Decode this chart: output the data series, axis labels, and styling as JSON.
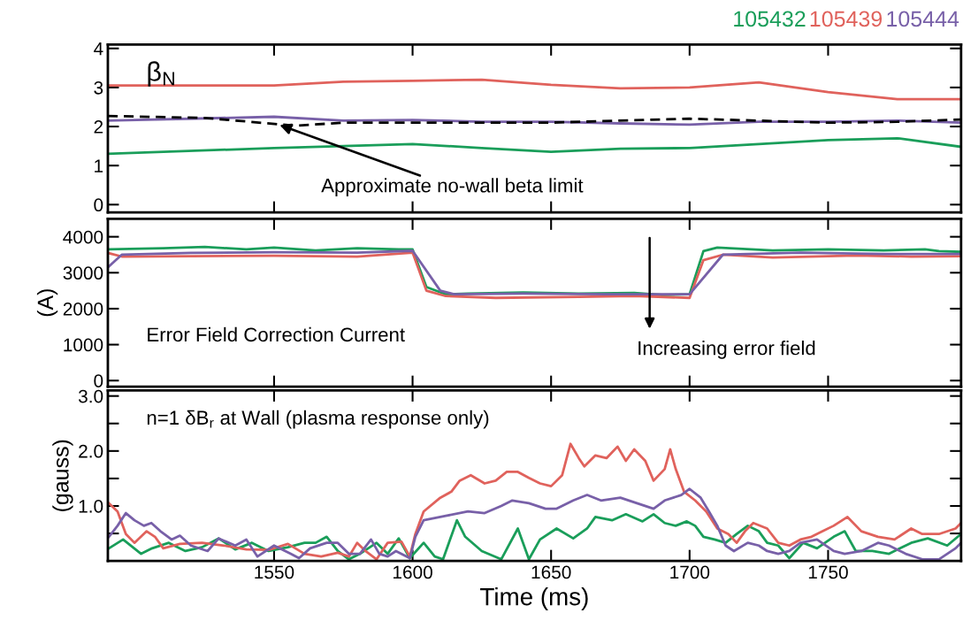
{
  "chart_data": [
    {
      "type": "line",
      "xlim": [
        1490,
        1798
      ],
      "ylim": [
        -0.2,
        4.1
      ],
      "xticks": [
        {
          "value": 1550,
          "label": null
        },
        {
          "value": 1600,
          "label": null
        },
        {
          "value": 1650,
          "label": null
        },
        {
          "value": 1700,
          "label": null
        },
        {
          "value": 1750,
          "label": null
        }
      ],
      "yticks": [
        0,
        1,
        2,
        3,
        4
      ],
      "tick_labels": "y",
      "legend": "top right",
      "grid": false,
      "line_style": "solid",
      "marker": "none",
      "annotations": [
        "β$_{N}$",
        {
          "text": "Approximate no-wall beta limit",
          "x": 1552,
          "y": 2.04
        }
      ],
      "series": [
        {
          "name": "105432",
          "color": "#1a9e5a",
          "x": [
            1490,
            1550,
            1575,
            1600,
            1625,
            1650,
            1675,
            1700,
            1725,
            1750,
            1775,
            1798
          ],
          "values": [
            1.3,
            1.45,
            1.5,
            1.55,
            1.45,
            1.35,
            1.43,
            1.45,
            1.55,
            1.65,
            1.7,
            1.48
          ]
        },
        {
          "name": "105439",
          "color": "#e0625c",
          "x": [
            1490,
            1550,
            1575,
            1600,
            1625,
            1650,
            1675,
            1700,
            1725,
            1750,
            1775,
            1798
          ],
          "values": [
            3.05,
            3.05,
            3.15,
            3.17,
            3.2,
            3.07,
            2.98,
            3.0,
            3.13,
            2.88,
            2.7,
            2.7
          ]
        },
        {
          "name": "105444",
          "color": "#7860a8",
          "x": [
            1490,
            1550,
            1575,
            1600,
            1625,
            1650,
            1675,
            1700,
            1725,
            1750,
            1775,
            1798
          ],
          "values": [
            2.15,
            2.25,
            2.15,
            2.17,
            2.12,
            2.12,
            2.08,
            2.05,
            2.12,
            2.12,
            2.15,
            2.1
          ]
        },
        {
          "color": "#000000",
          "line_style": "dashed",
          "x": [
            1490,
            1525,
            1558,
            1575,
            1650,
            1700,
            1750,
            1775,
            1798
          ],
          "values": [
            2.27,
            2.22,
            2.02,
            2.1,
            2.1,
            2.2,
            2.1,
            2.12,
            2.18
          ]
        }
      ]
    },
    {
      "type": "line",
      "xlim": [
        1490,
        1798
      ],
      "ylim": [
        -170,
        4500
      ],
      "xticks": [
        {
          "value": 1550,
          "label": null
        },
        {
          "value": 1600,
          "label": null
        },
        {
          "value": 1650,
          "label": null
        },
        {
          "value": 1700,
          "label": null
        },
        {
          "value": 1750,
          "label": null
        }
      ],
      "yticks": [
        0,
        1000,
        2000,
        3000,
        4000
      ],
      "tick_labels": "y",
      "ylabel": "(A)",
      "grid": false,
      "line_style": "solid",
      "marker": "none",
      "annotations": [
        "Error Field Correction Current",
        "Increasing error field"
      ],
      "series": [
        {
          "color": "#1a9e5a",
          "x": [
            1490,
            1510,
            1525,
            1540,
            1550,
            1565,
            1580,
            1595,
            1600,
            1605,
            1612,
            1620,
            1640,
            1660,
            1680,
            1690,
            1700,
            1705,
            1710,
            1730,
            1750,
            1770,
            1785,
            1790,
            1798
          ],
          "values": [
            3650,
            3680,
            3720,
            3650,
            3700,
            3620,
            3680,
            3650,
            3650,
            2600,
            2400,
            2420,
            2450,
            2420,
            2440,
            2380,
            2400,
            3600,
            3700,
            3620,
            3650,
            3620,
            3650,
            3600,
            3580
          ]
        },
        {
          "color": "#e0625c",
          "x": [
            1490,
            1495,
            1520,
            1550,
            1580,
            1600,
            1605,
            1612,
            1630,
            1660,
            1680,
            1700,
            1705,
            1712,
            1730,
            1760,
            1780,
            1798
          ],
          "values": [
            3550,
            3450,
            3460,
            3470,
            3450,
            3560,
            2500,
            2350,
            2300,
            2330,
            2350,
            2300,
            3350,
            3500,
            3420,
            3480,
            3450,
            3460
          ]
        },
        {
          "color": "#7860a8",
          "x": [
            1490,
            1495,
            1520,
            1550,
            1580,
            1600,
            1610,
            1615,
            1640,
            1670,
            1700,
            1712,
            1740,
            1770,
            1798
          ],
          "values": [
            3150,
            3500,
            3550,
            3570,
            3560,
            3610,
            2500,
            2400,
            2420,
            2400,
            2400,
            3500,
            3560,
            3520,
            3520
          ]
        }
      ]
    },
    {
      "type": "line",
      "xlim": [
        1490,
        1798
      ],
      "ylim": [
        0,
        3.1
      ],
      "xticks": [
        1550,
        1600,
        1650,
        1700,
        1750
      ],
      "yticks": [
        {
          "value": 0.5,
          "label": null
        },
        {
          "value": 1,
          "label": "1.0"
        },
        {
          "value": 1.5,
          "label": null
        },
        {
          "value": 2,
          "label": "2.0"
        },
        {
          "value": 2.5,
          "label": null
        },
        {
          "value": 3,
          "label": "3.0"
        }
      ],
      "xlabel": "Time (ms)",
      "ylabel": "(gauss)",
      "grid": false,
      "line_style": "solid",
      "marker": "none",
      "annotations": [
        "n=1 δB$_{r}$ at Wall (plasma response only)"
      ],
      "series": [
        {
          "color": "#1a9e5a",
          "x": [
            1490.4,
            1495.5,
            1502,
            1506,
            1512,
            1518,
            1524,
            1530,
            1536,
            1542,
            1548,
            1555,
            1561,
            1565,
            1569,
            1573,
            1577,
            1581,
            1587,
            1591,
            1595,
            1599,
            1604,
            1608,
            1611,
            1616,
            1619,
            1625,
            1632,
            1638,
            1642,
            1646,
            1652,
            1658,
            1663,
            1666,
            1672,
            1677,
            1683,
            1687,
            1691,
            1695,
            1699,
            1702,
            1705,
            1709,
            1713,
            1717,
            1721,
            1725,
            1728,
            1732,
            1736,
            1741,
            1746,
            1752,
            1756,
            1760,
            1766,
            1772,
            1776,
            1780,
            1786,
            1793,
            1798
          ],
          "values": [
            0.23,
            0.39,
            0.13,
            0.23,
            0.33,
            0.18,
            0.25,
            0.41,
            0.21,
            0.33,
            0.18,
            0.25,
            0.33,
            0.33,
            0.44,
            0.18,
            0.03,
            0.13,
            0.33,
            0.13,
            0.41,
            0.05,
            0.33,
            0.08,
            0.03,
            0.74,
            0.44,
            0.18,
            0.03,
            0.59,
            0.03,
            0.39,
            0.59,
            0.41,
            0.59,
            0.8,
            0.74,
            0.85,
            0.72,
            0.85,
            0.69,
            0.64,
            0.72,
            0.64,
            0.44,
            0.39,
            0.33,
            0.49,
            0.64,
            0.54,
            0.33,
            0.28,
            0.05,
            0.33,
            0.23,
            0.44,
            0.54,
            0.18,
            0.18,
            0.13,
            0.23,
            0.33,
            0.41,
            0.28,
            0.49
          ]
        },
        {
          "color": "#e0625c",
          "x": [
            1490.4,
            1493.5,
            1496.5,
            1499.6,
            1504,
            1507,
            1510,
            1516,
            1524,
            1532,
            1540,
            1548,
            1555,
            1561,
            1567,
            1573,
            1577,
            1580,
            1583,
            1587,
            1591,
            1596,
            1599,
            1601,
            1604,
            1610,
            1614,
            1617,
            1621,
            1626,
            1630,
            1634,
            1638,
            1642,
            1646,
            1650,
            1654,
            1657,
            1660,
            1662,
            1666,
            1670,
            1674,
            1677,
            1680,
            1684,
            1687,
            1691,
            1693,
            1695,
            1698,
            1702,
            1706,
            1710,
            1714,
            1717,
            1720,
            1723,
            1728,
            1732,
            1736,
            1740,
            1744,
            1748,
            1752,
            1757,
            1762,
            1768,
            1774,
            1780,
            1784,
            1790,
            1796,
            1798
          ],
          "values": [
            1.05,
            0.9,
            0.49,
            0.33,
            0.54,
            0.44,
            0.23,
            0.31,
            0.33,
            0.28,
            0.21,
            0.2,
            0.31,
            0.13,
            0.08,
            0.15,
            0.08,
            0.33,
            0.18,
            0.03,
            0.33,
            0.35,
            0.08,
            0.49,
            0.9,
            1.15,
            1.26,
            1.46,
            1.56,
            1.41,
            1.46,
            1.62,
            1.62,
            1.51,
            1.41,
            1.36,
            1.56,
            2.13,
            1.87,
            1.72,
            1.92,
            1.87,
            2.08,
            1.82,
            2.03,
            1.82,
            1.46,
            1.67,
            2.03,
            1.67,
            1.26,
            1.1,
            0.9,
            0.59,
            0.49,
            0.33,
            0.54,
            0.69,
            0.59,
            0.33,
            0.28,
            0.39,
            0.44,
            0.54,
            0.64,
            0.8,
            0.54,
            0.44,
            0.39,
            0.59,
            0.49,
            0.49,
            0.59,
            0.69
          ]
        },
        {
          "color": "#7860a8",
          "x": [
            1490.4,
            1493.5,
            1496.5,
            1499.6,
            1503,
            1505.7,
            1509,
            1513,
            1516,
            1520,
            1526,
            1530,
            1536,
            1540,
            1544,
            1550,
            1556,
            1559,
            1563,
            1569,
            1573,
            1577,
            1581,
            1585,
            1588,
            1591,
            1594,
            1599,
            1601,
            1604,
            1612,
            1620,
            1626,
            1632,
            1636,
            1642,
            1648,
            1652,
            1658,
            1663,
            1668,
            1675,
            1681,
            1687,
            1691,
            1697,
            1700,
            1704,
            1707,
            1710,
            1713,
            1716,
            1721,
            1725,
            1728,
            1732,
            1736,
            1740,
            1746,
            1752,
            1756,
            1762,
            1768,
            1772,
            1778,
            1784,
            1790,
            1796,
            1798
          ],
          "values": [
            0.44,
            0.64,
            0.87,
            0.74,
            0.64,
            0.69,
            0.54,
            0.39,
            0.46,
            0.28,
            0.18,
            0.41,
            0.28,
            0.39,
            0.08,
            0.28,
            0.13,
            0.05,
            0.23,
            0.33,
            0.33,
            0.13,
            0.13,
            0.39,
            0.13,
            0.08,
            0.18,
            0.05,
            0.44,
            0.74,
            0.82,
            0.9,
            0.87,
            1.0,
            1.1,
            1.05,
            0.95,
            0.95,
            1.1,
            1.2,
            1.1,
            1.15,
            1.05,
            0.95,
            1.1,
            1.2,
            1.31,
            1.15,
            0.9,
            0.64,
            0.28,
            0.18,
            0.33,
            0.28,
            0.18,
            0.13,
            0.18,
            0.33,
            0.39,
            0.18,
            0.13,
            0.18,
            0.33,
            0.28,
            0.13,
            0.03,
            0.03,
            0.23,
            0.33
          ]
        }
      ]
    }
  ]
}
